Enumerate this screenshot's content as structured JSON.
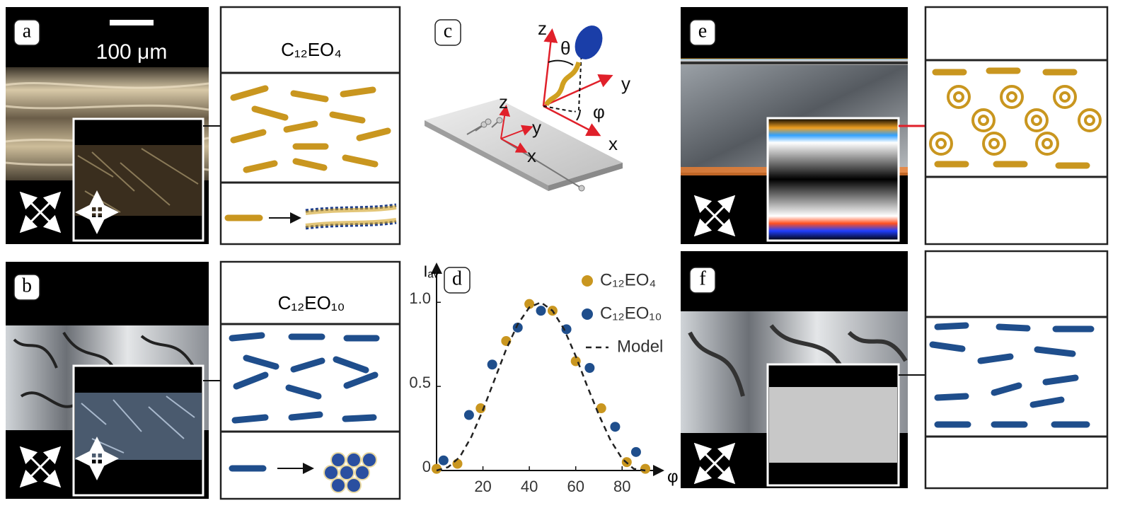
{
  "panels": {
    "a": {
      "label": "a",
      "scale_bar": "100 μm",
      "schematic_title": "C₁₂EO₄"
    },
    "b": {
      "label": "b",
      "schematic_title": "C₁₂EO₁₀"
    },
    "c": {
      "label": "c",
      "surface_axes": [
        "z",
        "y",
        "x"
      ],
      "molecule_axes": [
        "z",
        "y",
        "x"
      ],
      "angles": [
        "θ",
        "φ"
      ]
    },
    "d": {
      "label": "d"
    },
    "e": {
      "label": "e"
    },
    "f": {
      "label": "f"
    }
  },
  "chart_data": {
    "type": "scatter",
    "y_label": "Iₐᵥ",
    "x_label": "φ",
    "xlim": [
      0,
      97
    ],
    "ylim": [
      0,
      1.22
    ],
    "xticks": [
      20,
      40,
      60,
      80
    ],
    "yticks": [
      0,
      0.5,
      {
        "value": 1,
        "label": "1.0"
      }
    ],
    "legend": "upper right",
    "series": [
      {
        "name": "C₁₂EO₄",
        "type": "scatter",
        "color": "#c9961f",
        "x": [
          0,
          9,
          19,
          30,
          40,
          50,
          60,
          71,
          82,
          90
        ],
        "values": [
          0.01,
          0.04,
          0.37,
          0.77,
          0.99,
          0.95,
          0.65,
          0.37,
          0.05,
          0.01
        ]
      },
      {
        "name": "C₁₂EO₁₀",
        "type": "scatter",
        "color": "#1f4e8c",
        "x": [
          3,
          14,
          24,
          35,
          45,
          56,
          66,
          77,
          86
        ],
        "values": [
          0.06,
          0.33,
          0.63,
          0.85,
          0.95,
          0.84,
          0.61,
          0.26,
          0.11
        ]
      },
      {
        "name": "Model",
        "type": "line",
        "color": "#222222",
        "line_style": "dashed",
        "x": [
          0,
          5,
          10,
          15,
          20,
          25,
          30,
          35,
          40,
          45,
          50,
          55,
          60,
          65,
          70,
          75,
          80,
          85,
          90
        ],
        "values": [
          0,
          0.02,
          0.08,
          0.2,
          0.36,
          0.54,
          0.72,
          0.87,
          0.97,
          1.0,
          0.95,
          0.84,
          0.68,
          0.5,
          0.33,
          0.18,
          0.07,
          0.01,
          0
        ]
      }
    ]
  }
}
